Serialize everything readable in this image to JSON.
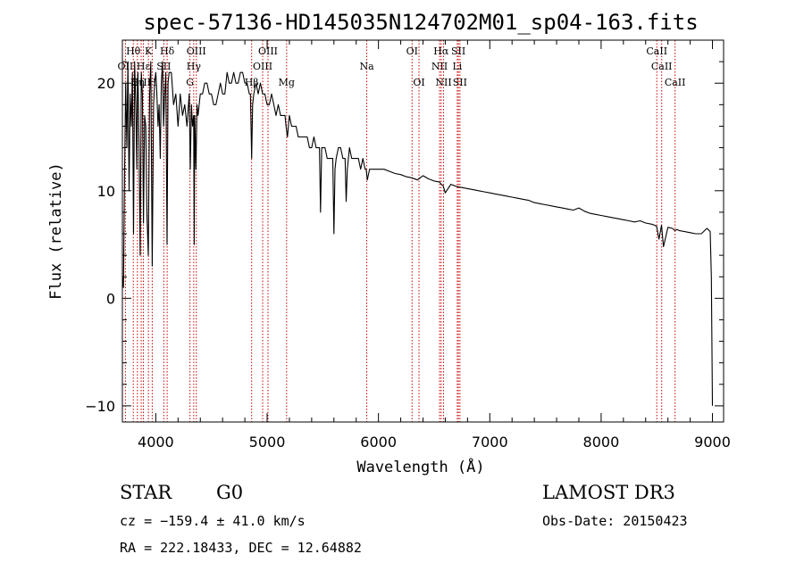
{
  "chart_data": {
    "type": "line",
    "title": "spec-57136-HD145035N124702M01_sp04-163.fits",
    "xlabel": "Wavelength (Å)",
    "ylabel": "Flux (relative)",
    "xlim": [
      3700,
      9100
    ],
    "ylim": [
      -11.5,
      24
    ],
    "xticks": [
      4000,
      5000,
      6000,
      7000,
      8000,
      9000
    ],
    "yticks": [
      -10,
      0,
      10,
      20
    ],
    "series": [
      {
        "name": "spectrum",
        "x": [
          3700,
          3710,
          3720,
          3730,
          3740,
          3750,
          3760,
          3770,
          3780,
          3790,
          3800,
          3810,
          3820,
          3830,
          3835,
          3840,
          3850,
          3860,
          3870,
          3880,
          3889,
          3900,
          3910,
          3920,
          3933,
          3945,
          3955,
          3968,
          3980,
          3990,
          4000,
          4010,
          4020,
          4030,
          4040,
          4050,
          4060,
          4070,
          4080,
          4090,
          4101,
          4110,
          4120,
          4140,
          4160,
          4180,
          4200,
          4220,
          4240,
          4260,
          4280,
          4300,
          4310,
          4320,
          4330,
          4340,
          4345,
          4350,
          4360,
          4370,
          4380,
          4400,
          4420,
          4440,
          4460,
          4480,
          4500,
          4520,
          4540,
          4560,
          4580,
          4600,
          4620,
          4640,
          4660,
          4680,
          4700,
          4720,
          4740,
          4760,
          4780,
          4800,
          4820,
          4840,
          4850,
          4861,
          4870,
          4880,
          4900,
          4920,
          4940,
          4960,
          4980,
          5000,
          5020,
          5040,
          5060,
          5080,
          5100,
          5120,
          5140,
          5160,
          5170,
          5183,
          5200,
          5220,
          5240,
          5260,
          5280,
          5300,
          5320,
          5340,
          5360,
          5380,
          5400,
          5420,
          5440,
          5460,
          5470,
          5480,
          5490,
          5500,
          5520,
          5540,
          5560,
          5580,
          5590,
          5600,
          5610,
          5620,
          5640,
          5660,
          5680,
          5700,
          5710,
          5720,
          5740,
          5760,
          5780,
          5800,
          5820,
          5840,
          5860,
          5880,
          5890,
          5900,
          5920,
          5940,
          5960,
          5980,
          6000,
          6050,
          6100,
          6150,
          6200,
          6250,
          6300,
          6350,
          6400,
          6450,
          6500,
          6550,
          6563,
          6580,
          6600,
          6650,
          6700,
          6750,
          6800,
          6850,
          6900,
          6950,
          7000,
          7050,
          7100,
          7150,
          7200,
          7250,
          7300,
          7350,
          7400,
          7450,
          7500,
          7550,
          7600,
          7650,
          7700,
          7750,
          7800,
          7850,
          7900,
          7950,
          8000,
          8050,
          8100,
          8150,
          8200,
          8250,
          8300,
          8350,
          8400,
          8450,
          8480,
          8498,
          8520,
          8542,
          8560,
          8600,
          8640,
          8662,
          8680,
          8700,
          8750,
          8800,
          8850,
          8900,
          8950,
          8960,
          8980,
          8990,
          9000
        ],
        "y": [
          2,
          1,
          12,
          20,
          14,
          22,
          10,
          19,
          16,
          21,
          6,
          22,
          18,
          12,
          20,
          21,
          14,
          4,
          21,
          19,
          7,
          17,
          16,
          8,
          4,
          19,
          22,
          3,
          18,
          20,
          21,
          19,
          16,
          18,
          13,
          20,
          22,
          16,
          19,
          21,
          5,
          20,
          21,
          21,
          18,
          19,
          16,
          19,
          17,
          18,
          16,
          19,
          12,
          18,
          16,
          17,
          5,
          17,
          12,
          18,
          17,
          19,
          19,
          20,
          20,
          19,
          19,
          18,
          18,
          19,
          20,
          19,
          19,
          21,
          20,
          20,
          21,
          20,
          20,
          21,
          21,
          20,
          20,
          19,
          19,
          13,
          18,
          19,
          20,
          19,
          20,
          19,
          19,
          18,
          18,
          19,
          18,
          17,
          18,
          17,
          17,
          17,
          16,
          15,
          17,
          16,
          16,
          16,
          15,
          15,
          15,
          15,
          15,
          14,
          14,
          15,
          14,
          14,
          14,
          8,
          14,
          14,
          14,
          13,
          13,
          13,
          13,
          6,
          12,
          13,
          14,
          14,
          13,
          13,
          9,
          12,
          14,
          13,
          13,
          13,
          13,
          12,
          13,
          12,
          12,
          11,
          12,
          12,
          12,
          12,
          12,
          12,
          11.8,
          11.6,
          11.5,
          11.3,
          11.2,
          11,
          11.4,
          11.1,
          10.9,
          10.8,
          10.6,
          10.5,
          9.8,
          10.6,
          10.4,
          10.3,
          10.2,
          10.1,
          10,
          9.9,
          9.8,
          9.7,
          9.6,
          9.5,
          9.4,
          9.3,
          9.2,
          9.1,
          8.9,
          8.8,
          8.7,
          8.6,
          8.5,
          8.4,
          8.3,
          8.2,
          8.4,
          8.1,
          7.9,
          7.8,
          7.7,
          7.6,
          7.5,
          7.4,
          7.3,
          7.2,
          7.1,
          7.2,
          7.0,
          6.9,
          6.8,
          6.7,
          5.5,
          6.8,
          4.8,
          6.6,
          6.5,
          6.3,
          6.4,
          6.3,
          6.2,
          6.1,
          6.0,
          6.0,
          6.5,
          6.4,
          6.2,
          2,
          -10
        ]
      }
    ],
    "line_labels": [
      {
        "name": "H-theta",
        "text": "Hθ",
        "x": 3798,
        "row": 1
      },
      {
        "name": "K",
        "text": "K",
        "x": 3934,
        "row": 1
      },
      {
        "name": "H-delta",
        "text": "Hδ",
        "x": 4102,
        "row": 1
      },
      {
        "name": "OIII-4364",
        "text": "OIII",
        "x": 4364,
        "row": 1
      },
      {
        "name": "OIII-5008",
        "text": "OIII",
        "x": 5008,
        "row": 1
      },
      {
        "name": "OI-6302",
        "text": "OI",
        "x": 6302,
        "row": 1
      },
      {
        "name": "H-alpha",
        "text": "Hα",
        "x": 6563,
        "row": 1
      },
      {
        "name": "SII-6718",
        "text": "SII",
        "x": 6718,
        "row": 1
      },
      {
        "name": "CaII-8500",
        "text": "CaII",
        "x": 8500,
        "row": 1
      },
      {
        "name": "OII",
        "text": "OII",
        "x": 3727,
        "row": 2
      },
      {
        "name": "H-epsilon",
        "text": "Hε",
        "x": 3889,
        "row": 2
      },
      {
        "name": "SII-4072",
        "text": "SII",
        "x": 4072,
        "row": 2
      },
      {
        "name": "H-gamma",
        "text": "Hγ",
        "x": 4341,
        "row": 2
      },
      {
        "name": "OIII-4960",
        "text": "OIII",
        "x": 4960,
        "row": 2
      },
      {
        "name": "Na",
        "text": "Na",
        "x": 5895,
        "row": 2
      },
      {
        "name": "NII-6549",
        "text": "NII",
        "x": 6549,
        "row": 2
      },
      {
        "name": "Li",
        "text": "Li",
        "x": 6708,
        "row": 2
      },
      {
        "name": "CaII-8544",
        "text": "CaII",
        "x": 8544,
        "row": 2
      },
      {
        "name": "OIII-3869",
        "text": "OIII",
        "x": 3869,
        "row": 3
      },
      {
        "name": "H-eta",
        "text": "Hη",
        "x": 3835,
        "row": 3
      },
      {
        "name": "H",
        "text": "H",
        "x": 3968,
        "row": 3
      },
      {
        "name": "G",
        "text": "G",
        "x": 4307,
        "row": 3
      },
      {
        "name": "H-beta",
        "text": "Hβ",
        "x": 4861,
        "row": 3
      },
      {
        "name": "Mg",
        "text": "Mg",
        "x": 5175,
        "row": 3
      },
      {
        "name": "OI-6364",
        "text": "OI",
        "x": 6364,
        "row": 3
      },
      {
        "name": "NII-6585",
        "text": "NII",
        "x": 6585,
        "row": 3
      },
      {
        "name": "SII-6732",
        "text": "SII",
        "x": 6732,
        "row": 3
      },
      {
        "name": "CaII-8664",
        "text": "CaII",
        "x": 8664,
        "row": 3
      }
    ],
    "line_markers": [
      3727,
      3798,
      3835,
      3869,
      3889,
      3934,
      3968,
      4072,
      4102,
      4307,
      4341,
      4364,
      4861,
      4960,
      5008,
      5175,
      5895,
      6302,
      6364,
      6549,
      6563,
      6585,
      6708,
      6718,
      6732,
      8500,
      8544,
      8664
    ],
    "marker_color": "#cc0000"
  },
  "info": {
    "class": "STAR",
    "subclass": "G0",
    "survey": "LAMOST DR3",
    "cz": "cz = −159.4 ± 41.0 km/s",
    "obs_date": "Obs-Date: 20150423",
    "coords": "RA = 222.18433, DEC =  12.64882"
  }
}
